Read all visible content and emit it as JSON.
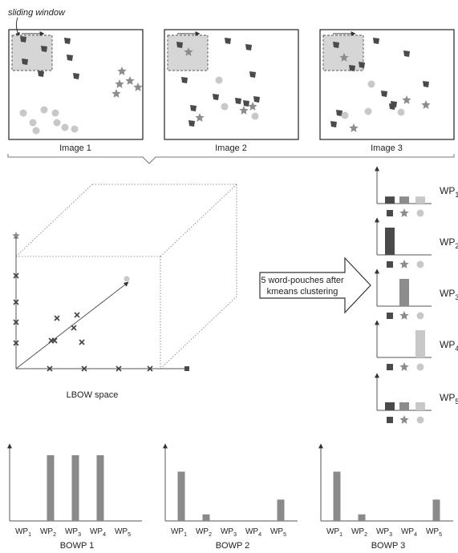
{
  "annotation": {
    "sliding_window": "sliding window"
  },
  "images": [
    {
      "label": "Image 1"
    },
    {
      "label": "Image 2"
    },
    {
      "label": "Image 3"
    }
  ],
  "lbow": {
    "label": "LBOW space",
    "arrow_text_1": "5 word-pouches after",
    "arrow_text_2": "kmeans clustering"
  },
  "pouch_names": [
    "WP1",
    "WP2",
    "WP3",
    "WP4",
    "WP5"
  ],
  "pouch_prefix": "WP",
  "pouch_subs": [
    "1",
    "2",
    "3",
    "4",
    "5"
  ],
  "pouches": [
    {
      "square": 0.22,
      "star": 0.22,
      "circle": 0.22
    },
    {
      "square": 0.85,
      "star": 0.0,
      "circle": 0.0
    },
    {
      "square": 0.0,
      "star": 0.85,
      "circle": 0.0
    },
    {
      "square": 0.0,
      "star": 0.0,
      "circle": 0.85
    },
    {
      "square": 0.25,
      "star": 0.25,
      "circle": 0.25
    }
  ],
  "colors": {
    "square": "#4a4a4a",
    "star": "#8c8c8c",
    "circle": "#c8c8c8",
    "bar": "#8a8a8a"
  },
  "chart_data": [
    {
      "type": "bar",
      "title": "BOWP 1",
      "categories": [
        "WP1",
        "WP2",
        "WP3",
        "WP4",
        "WP5"
      ],
      "values": [
        0,
        4,
        4,
        4,
        0
      ]
    },
    {
      "type": "bar",
      "title": "BOWP 2",
      "categories": [
        "WP1",
        "WP2",
        "WP3",
        "WP4",
        "WP5"
      ],
      "values": [
        3,
        0.4,
        0,
        0,
        1.3
      ]
    },
    {
      "type": "bar",
      "title": "BOWP 3",
      "categories": [
        "WP1",
        "WP2",
        "WP3",
        "WP4",
        "WP5"
      ],
      "values": [
        3,
        0.4,
        0,
        0,
        1.3
      ]
    }
  ]
}
